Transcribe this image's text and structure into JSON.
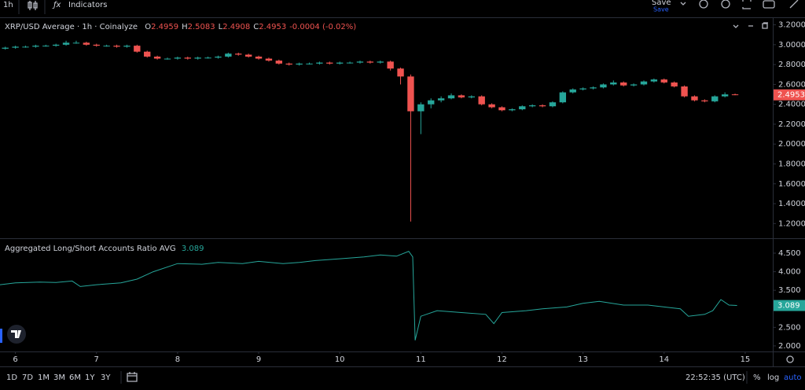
{
  "ui": {
    "interval": "1h",
    "indicators": "Indicators",
    "save": "Save",
    "save_sub": "Save",
    "ranges": [
      "1D",
      "7D",
      "1M",
      "3M",
      "6M",
      "1Y",
      "3Y"
    ],
    "clock": "22:52:35 (UTC)",
    "scale_options": [
      "%",
      "log",
      "auto"
    ]
  },
  "chart_data": [
    {
      "type": "candlestick",
      "title": "XRP/USD Average · 1h · Coinalyze",
      "ohlc_legend": [
        {
          "label": "O",
          "value": 2.4959
        },
        {
          "label": "H",
          "value": 2.5083
        },
        {
          "label": "L",
          "value": 2.4908
        },
        {
          "label": "C",
          "value": 2.4953
        }
      ],
      "change": "-0.0004 (-0.02%)",
      "up_color": "#26a69a",
      "down_color": "#ef5350",
      "xlim": [
        5.81,
        15.34
      ],
      "ylim": [
        1.06,
        3.26
      ],
      "yticks": [
        {
          "value": 1.2,
          "label": "1.2000"
        },
        {
          "value": 1.4,
          "label": "1.4000"
        },
        {
          "value": 1.6,
          "label": "1.6000"
        },
        {
          "value": 1.8,
          "label": "1.8000"
        },
        {
          "value": 2.0,
          "label": "2.0000"
        },
        {
          "value": 2.2,
          "label": "2.2000"
        },
        {
          "value": 2.4,
          "label": "2.4000"
        },
        {
          "value": 2.6,
          "label": "2.6000"
        },
        {
          "value": 2.8,
          "label": "2.8000"
        },
        {
          "value": 3.0,
          "label": "3.0000"
        },
        {
          "value": 3.2,
          "label": "3.2000"
        }
      ],
      "x": [
        5.875,
        6,
        6.125,
        6.25,
        6.375,
        6.5,
        6.625,
        6.75,
        6.875,
        7,
        7.125,
        7.25,
        7.375,
        7.5,
        7.625,
        7.75,
        7.875,
        8,
        8.125,
        8.25,
        8.375,
        8.5,
        8.625,
        8.75,
        8.875,
        9,
        9.125,
        9.25,
        9.375,
        9.5,
        9.625,
        9.75,
        9.875,
        10,
        10.125,
        10.25,
        10.375,
        10.5,
        10.625,
        10.75,
        10.875,
        11,
        11.125,
        11.25,
        11.375,
        11.5,
        11.625,
        11.75,
        11.875,
        12,
        12.125,
        12.25,
        12.375,
        12.5,
        12.625,
        12.75,
        12.875,
        13,
        13.125,
        13.25,
        13.375,
        13.5,
        13.625,
        13.75,
        13.875,
        14,
        14.125,
        14.25,
        14.375,
        14.5,
        14.625,
        14.75,
        14.875
      ],
      "open": [
        2.96,
        2.97,
        2.98,
        2.98,
        2.99,
        2.99,
        3.0,
        3.02,
        3.02,
        3.0,
        2.99,
        2.99,
        2.98,
        2.99,
        2.93,
        2.88,
        2.86,
        2.86,
        2.87,
        2.86,
        2.87,
        2.87,
        2.88,
        2.91,
        2.9,
        2.88,
        2.86,
        2.84,
        2.81,
        2.8,
        2.81,
        2.81,
        2.82,
        2.81,
        2.82,
        2.82,
        2.83,
        2.82,
        2.83,
        2.76,
        2.68,
        2.33,
        2.4,
        2.44,
        2.46,
        2.49,
        2.47,
        2.48,
        2.4,
        2.37,
        2.34,
        2.35,
        2.38,
        2.39,
        2.38,
        2.42,
        2.52,
        2.55,
        2.56,
        2.57,
        2.6,
        2.62,
        2.59,
        2.6,
        2.63,
        2.65,
        2.62,
        2.58,
        2.48,
        2.44,
        2.43,
        2.48,
        2.5
      ],
      "high": [
        2.98,
        2.99,
        2.99,
        3.0,
        3.0,
        3.01,
        3.04,
        3.04,
        3.03,
        3.01,
        3.0,
        3.0,
        3.0,
        3.0,
        2.94,
        2.89,
        2.87,
        2.88,
        2.88,
        2.88,
        2.88,
        2.89,
        2.92,
        2.92,
        2.91,
        2.89,
        2.87,
        2.85,
        2.82,
        2.82,
        2.82,
        2.83,
        2.83,
        2.83,
        2.83,
        2.84,
        2.84,
        2.84,
        2.84,
        2.77,
        2.7,
        2.42,
        2.46,
        2.48,
        2.51,
        2.5,
        2.49,
        2.49,
        2.41,
        2.38,
        2.36,
        2.39,
        2.4,
        2.4,
        2.43,
        2.53,
        2.56,
        2.57,
        2.58,
        2.61,
        2.64,
        2.63,
        2.61,
        2.64,
        2.66,
        2.66,
        2.63,
        2.59,
        2.49,
        2.45,
        2.49,
        2.52,
        2.5083
      ],
      "low": [
        2.95,
        2.96,
        2.97,
        2.97,
        2.98,
        2.98,
        2.99,
        3.01,
        2.99,
        2.98,
        2.98,
        2.97,
        2.97,
        2.92,
        2.87,
        2.85,
        2.85,
        2.85,
        2.85,
        2.85,
        2.86,
        2.86,
        2.87,
        2.89,
        2.87,
        2.85,
        2.83,
        2.8,
        2.79,
        2.79,
        2.8,
        2.8,
        2.8,
        2.8,
        2.81,
        2.81,
        2.81,
        2.81,
        2.74,
        2.6,
        1.22,
        2.1,
        2.36,
        2.42,
        2.45,
        2.46,
        2.46,
        2.39,
        2.36,
        2.33,
        2.33,
        2.34,
        2.37,
        2.37,
        2.37,
        2.41,
        2.51,
        2.54,
        2.55,
        2.56,
        2.59,
        2.58,
        2.58,
        2.59,
        2.62,
        2.61,
        2.57,
        2.47,
        2.43,
        2.42,
        2.42,
        2.47,
        2.4908
      ],
      "close": [
        2.97,
        2.98,
        2.98,
        2.99,
        2.99,
        3.0,
        3.02,
        3.02,
        3.0,
        2.99,
        2.99,
        2.98,
        2.99,
        2.93,
        2.88,
        2.86,
        2.86,
        2.87,
        2.86,
        2.87,
        2.87,
        2.88,
        2.91,
        2.9,
        2.88,
        2.86,
        2.84,
        2.81,
        2.8,
        2.81,
        2.81,
        2.82,
        2.81,
        2.82,
        2.82,
        2.83,
        2.82,
        2.83,
        2.76,
        2.68,
        2.33,
        2.4,
        2.44,
        2.46,
        2.49,
        2.47,
        2.48,
        2.4,
        2.37,
        2.34,
        2.35,
        2.38,
        2.39,
        2.38,
        2.42,
        2.52,
        2.55,
        2.56,
        2.57,
        2.6,
        2.62,
        2.59,
        2.6,
        2.63,
        2.65,
        2.62,
        2.58,
        2.48,
        2.44,
        2.43,
        2.48,
        2.5,
        2.4953
      ]
    },
    {
      "type": "line",
      "title": "Aggregated Long/Short Accounts Ratio AVG",
      "color": "#26a69a",
      "xlim": [
        5.81,
        15.34
      ],
      "xticks": [
        6,
        7,
        8,
        9,
        10,
        11,
        12,
        13,
        14,
        15
      ],
      "ylim": [
        1.85,
        4.86
      ],
      "yticks": [
        {
          "value": 2.0,
          "label": "2.000"
        },
        {
          "value": 2.5,
          "label": "2.500"
        },
        {
          "value": 3.0,
          "label": "3.000"
        },
        {
          "value": 3.5,
          "label": "3.500"
        },
        {
          "value": 4.0,
          "label": "4.000"
        },
        {
          "value": 4.5,
          "label": "4.500"
        }
      ],
      "x": [
        5.81,
        6.0,
        6.3,
        6.5,
        6.7,
        6.8,
        7.0,
        7.3,
        7.5,
        7.7,
        8.0,
        8.3,
        8.5,
        8.8,
        9.0,
        9.3,
        9.5,
        9.7,
        10.0,
        10.3,
        10.5,
        10.7,
        10.85,
        10.9,
        10.93,
        11.0,
        11.2,
        11.5,
        11.8,
        11.9,
        12.0,
        12.3,
        12.5,
        12.8,
        13.0,
        13.2,
        13.5,
        13.8,
        14.0,
        14.2,
        14.3,
        14.5,
        14.6,
        14.7,
        14.8,
        14.9
      ],
      "values": [
        3.65,
        3.7,
        3.72,
        3.71,
        3.75,
        3.6,
        3.65,
        3.7,
        3.8,
        4.0,
        4.22,
        4.2,
        4.25,
        4.22,
        4.28,
        4.22,
        4.25,
        4.3,
        4.35,
        4.4,
        4.45,
        4.42,
        4.55,
        4.4,
        2.15,
        2.8,
        2.95,
        2.9,
        2.85,
        2.6,
        2.9,
        2.95,
        3.0,
        3.05,
        3.15,
        3.2,
        3.1,
        3.1,
        3.05,
        3.0,
        2.8,
        2.85,
        2.95,
        3.25,
        3.1,
        3.089
      ]
    }
  ]
}
